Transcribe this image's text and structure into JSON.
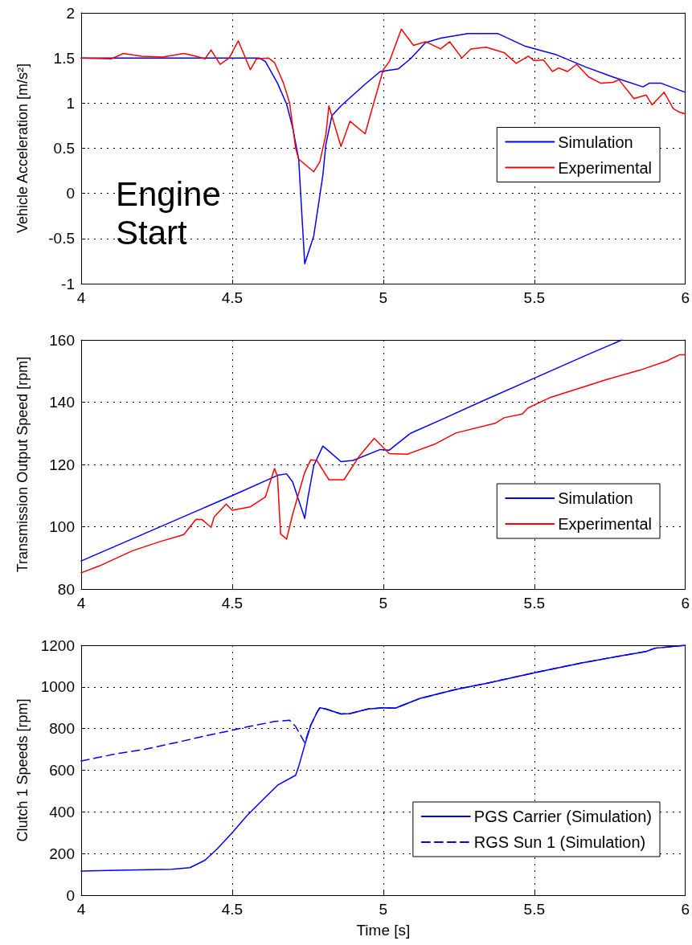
{
  "chart_data": [
    {
      "type": "line",
      "ylabel": "Vehicle Acceleration [m/s²]",
      "xlim": [
        4,
        6
      ],
      "xticks": [
        4,
        4.5,
        5,
        5.5,
        6
      ],
      "ylim": [
        -1,
        2
      ],
      "yticks": [
        -1,
        -0.5,
        0,
        0.5,
        1,
        1.5,
        2
      ],
      "grid": true,
      "legend": "right",
      "marker": "none",
      "annotations": [
        "Engine\nStart"
      ],
      "series": [
        {
          "name": "Simulation",
          "color": "#0000ff",
          "x": [
            4,
            4.59,
            4.61,
            4.65,
            4.68,
            4.7,
            4.72,
            4.74,
            4.77,
            4.8,
            4.81,
            4.83,
            4.86,
            4.94,
            4.99,
            5.05,
            5.09,
            5.14,
            5.19,
            5.28,
            5.38,
            5.47,
            5.57,
            5.67,
            5.76,
            5.86,
            5.88,
            5.92,
            6
          ],
          "values": [
            1.5,
            1.5,
            1.46,
            1.22,
            0.99,
            0.73,
            0.38,
            -0.78,
            -0.47,
            0.2,
            0.54,
            0.86,
            0.97,
            1.21,
            1.35,
            1.38,
            1.49,
            1.67,
            1.72,
            1.77,
            1.77,
            1.63,
            1.54,
            1.4,
            1.29,
            1.18,
            1.22,
            1.22,
            1.12
          ]
        },
        {
          "name": "Experimental",
          "color": "#ff0000",
          "x": [
            4,
            4.1,
            4.14,
            4.2,
            4.27,
            4.34,
            4.38,
            4.41,
            4.43,
            4.46,
            4.49,
            4.52,
            4.56,
            4.58,
            4.62,
            4.64,
            4.67,
            4.69,
            4.71,
            4.72,
            4.77,
            4.79,
            4.81,
            4.82,
            4.86,
            4.89,
            4.94,
            4.96,
            5.0,
            5.02,
            5.06,
            5.1,
            5.14,
            5.19,
            5.22,
            5.26,
            5.29,
            5.34,
            5.4,
            5.44,
            5.48,
            5.5,
            5.53,
            5.56,
            5.58,
            5.61,
            5.64,
            5.68,
            5.72,
            5.76,
            5.78,
            5.83,
            5.87,
            5.89,
            5.93,
            5.96,
            5.98,
            6
          ],
          "values": [
            1.5,
            1.49,
            1.55,
            1.52,
            1.51,
            1.55,
            1.52,
            1.49,
            1.59,
            1.43,
            1.5,
            1.69,
            1.37,
            1.49,
            1.5,
            1.45,
            1.22,
            1.0,
            0.5,
            0.38,
            0.24,
            0.35,
            0.65,
            0.97,
            0.52,
            0.8,
            0.66,
            0.9,
            1.37,
            1.46,
            1.82,
            1.64,
            1.68,
            1.6,
            1.68,
            1.5,
            1.6,
            1.62,
            1.56,
            1.44,
            1.52,
            1.47,
            1.48,
            1.35,
            1.39,
            1.35,
            1.43,
            1.29,
            1.22,
            1.23,
            1.26,
            1.05,
            1.09,
            0.98,
            1.12,
            0.94,
            0.9,
            0.88
          ]
        }
      ]
    },
    {
      "type": "line",
      "ylabel": "Transmission Output Speed [rpm]",
      "xlim": [
        4,
        6
      ],
      "xticks": [
        4,
        4.5,
        5,
        5.5,
        6
      ],
      "ylim": [
        80,
        160
      ],
      "yticks": [
        80,
        100,
        120,
        140,
        160
      ],
      "grid": true,
      "legend": "bottom right",
      "marker": "none",
      "series": [
        {
          "name": "Simulation",
          "color": "#0000ff",
          "x": [
            4,
            4.5,
            4.65,
            4.68,
            4.7,
            4.74,
            4.75,
            4.77,
            4.8,
            4.82,
            4.86,
            4.9,
            4.99,
            5.02,
            5.09,
            5.19,
            5.32,
            5.5,
            5.67,
            5.79
          ],
          "values": [
            89,
            110,
            116.5,
            117,
            114.4,
            102.7,
            109,
            119.6,
            125.9,
            124.3,
            120.9,
            121.3,
            124.8,
            124.6,
            130,
            134.3,
            140,
            147.7,
            155,
            160
          ]
        },
        {
          "name": "Experimental",
          "color": "#ff0000",
          "x": [
            4,
            4.06,
            4.17,
            4.26,
            4.34,
            4.38,
            4.4,
            4.43,
            4.44,
            4.48,
            4.5,
            4.56,
            4.61,
            4.64,
            4.65,
            4.66,
            4.68,
            4.7,
            4.74,
            4.76,
            4.78,
            4.82,
            4.87,
            4.92,
            4.97,
            5.02,
            5.08,
            5.17,
            5.24,
            5.37,
            5.4,
            5.46,
            5.48,
            5.55,
            5.64,
            5.74,
            5.85,
            5.94,
            5.98,
            6
          ],
          "values": [
            85.2,
            87.4,
            92.3,
            95.2,
            97.5,
            102.4,
            102.3,
            99.8,
            103.1,
            107.3,
            105.3,
            106.4,
            109.6,
            118.7,
            116.1,
            97.7,
            96,
            104,
            117.4,
            121.5,
            121.3,
            115.1,
            115.1,
            122.6,
            128.4,
            123.5,
            123.3,
            126.5,
            130.1,
            133.2,
            135,
            136.2,
            138.2,
            141.4,
            144.2,
            147.3,
            150.3,
            153.3,
            155.2,
            155.2
          ]
        }
      ]
    },
    {
      "type": "line",
      "xlabel": "Time [s]",
      "ylabel": "Clutch 1 Speeds [rpm]",
      "xlim": [
        4,
        6
      ],
      "xticks": [
        4,
        4.5,
        5,
        5.5,
        6
      ],
      "ylim": [
        0,
        1200
      ],
      "yticks": [
        0,
        200,
        400,
        600,
        800,
        1000,
        1200
      ],
      "grid": true,
      "legend": "bottom right",
      "marker": "none",
      "series": [
        {
          "name": "PGS Carrier (Simulation)",
          "color": "#0000ff",
          "line_style": "solid",
          "x": [
            4,
            4.12,
            4.3,
            4.36,
            4.41,
            4.45,
            4.5,
            4.55,
            4.6,
            4.65,
            4.71,
            4.72,
            4.74,
            4.76,
            4.78,
            4.79,
            4.81,
            4.86,
            4.89,
            4.95,
            5.0,
            5.04,
            5.12,
            5.24,
            5.35,
            5.5,
            5.66,
            5.79,
            5.87,
            5.9,
            6
          ],
          "values": [
            116,
            120,
            124,
            132,
            168,
            222,
            300,
            384,
            456,
            528,
            576,
            618,
            720,
            816,
            876,
            900,
            894,
            870,
            872,
            894,
            900,
            898,
            944,
            988,
            1020,
            1068,
            1116,
            1150,
            1170,
            1186,
            1200
          ]
        },
        {
          "name": "RGS Sun 1 (Simulation)",
          "color": "#0000ff",
          "line_style": "dashed",
          "x": [
            4,
            4.12,
            4.21,
            4.33,
            4.42,
            4.5,
            4.55,
            4.64,
            4.69,
            4.71,
            4.74,
            4.76,
            4.78,
            4.79,
            4.81,
            4.86,
            4.89,
            4.95,
            5.0,
            5.04,
            5.12,
            5.24,
            5.35,
            5.5,
            5.66,
            5.79,
            5.87,
            5.9,
            6
          ],
          "values": [
            644,
            680,
            700,
            738,
            768,
            792,
            808,
            834,
            840,
            810,
            732,
            816,
            876,
            900,
            894,
            870,
            872,
            894,
            900,
            898,
            944,
            988,
            1020,
            1068,
            1116,
            1150,
            1170,
            1186,
            1200
          ]
        }
      ]
    }
  ]
}
